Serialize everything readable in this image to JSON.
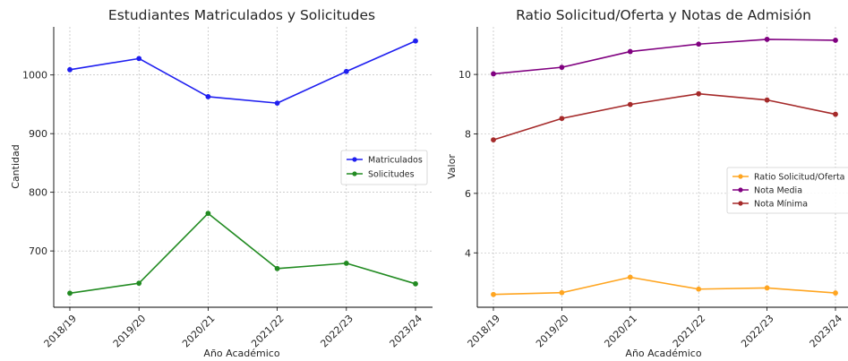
{
  "chart_data": [
    {
      "type": "line",
      "title": "Estudiantes Matriculados y Solicitudes",
      "xlabel": "Año Académico",
      "ylabel": "Cantidad",
      "categories": [
        "2018/19",
        "2019/20",
        "2020/21",
        "2021/22",
        "2022/23",
        "2023/24"
      ],
      "series": [
        {
          "name": "Matriculados",
          "color": "#1f1ff0",
          "values": [
            1009,
            1028,
            963,
            952,
            1006,
            1058
          ]
        },
        {
          "name": "Solicitudes",
          "color": "#228b22",
          "values": [
            628,
            645,
            764,
            670,
            679,
            644
          ]
        }
      ],
      "yticks": [
        700,
        800,
        900,
        1000
      ],
      "ylim": [
        604,
        1082
      ],
      "grid": true,
      "legend_position": "center-right"
    },
    {
      "type": "line",
      "title": "Ratio Solicitud/Oferta y Notas de Admisión",
      "xlabel": "Año Académico",
      "ylabel": "Valor",
      "categories": [
        "2018/19",
        "2019/20",
        "2020/21",
        "2021/22",
        "2022/23",
        "2023/24"
      ],
      "series": [
        {
          "name": "Ratio Solicitud/Oferta",
          "color": "#ffa520",
          "values": [
            2.6,
            2.66,
            3.18,
            2.78,
            2.82,
            2.65
          ]
        },
        {
          "name": "Nota Media",
          "color": "#800080",
          "values": [
            10.02,
            10.24,
            10.77,
            11.02,
            11.18,
            11.15
          ]
        },
        {
          "name": "Nota Mínima",
          "color": "#a52a2a",
          "values": [
            7.8,
            8.52,
            8.99,
            9.35,
            9.14,
            8.66
          ]
        }
      ],
      "yticks": [
        4,
        6,
        8,
        10
      ],
      "ylim": [
        2.17,
        11.6
      ],
      "grid": true,
      "legend_position": "center-right"
    }
  ]
}
